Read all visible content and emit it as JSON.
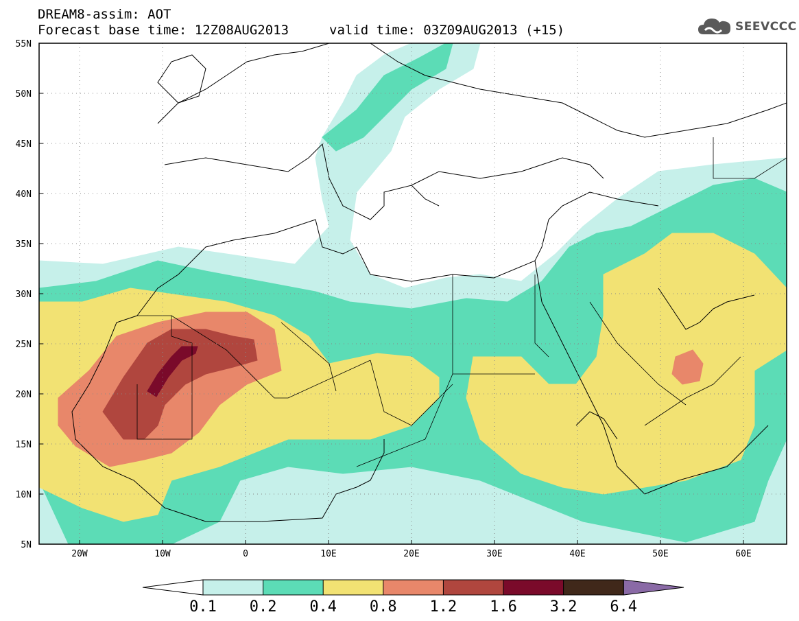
{
  "header": {
    "title_line1": "DREAM8-assim: AOT",
    "title_line2_base": "Forecast base time: 12Z08AUG2013",
    "title_line2_valid": "valid time: 03Z09AUG2013 (+15)"
  },
  "logo": {
    "text": "SEEVCCC",
    "icon": "cloud-icon",
    "color": "#5a5a5a"
  },
  "map": {
    "lon_range": [
      -25,
      65
    ],
    "lat_range": [
      5,
      55
    ],
    "x_ticks": [
      "20W",
      "10W",
      "0",
      "10E",
      "20E",
      "30E",
      "40E",
      "50E",
      "60E"
    ],
    "y_ticks": [
      "55N",
      "50N",
      "45N",
      "40N",
      "35N",
      "30N",
      "25N",
      "20N",
      "15N",
      "10N",
      "5N"
    ],
    "grid": "dotted"
  },
  "colorbar": {
    "labels": [
      "0.1",
      "0.2",
      "0.4",
      "0.8",
      "1.2",
      "1.6",
      "3.2",
      "6.4"
    ],
    "colors": [
      "#c6f0ea",
      "#5cdcb6",
      "#f2e273",
      "#e8876a",
      "#b0463e",
      "#7a0a2a",
      "#40281a",
      "#8a6aa6"
    ]
  }
}
